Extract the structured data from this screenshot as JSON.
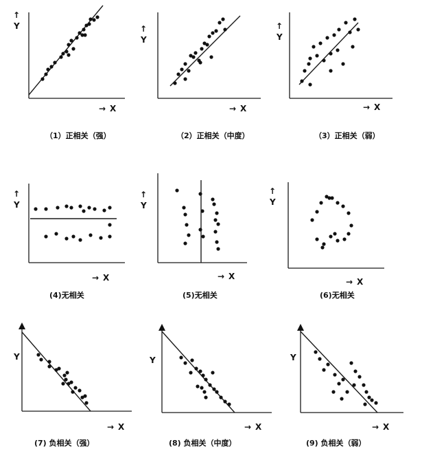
{
  "axis_labels": {
    "x": "X",
    "y": "Y",
    "arrow": "→",
    "up_arrow": "↑"
  },
  "panels": [
    {
      "label": "（1）正相关（强）",
      "kind": "positive",
      "strength": "strong"
    },
    {
      "label": "（2）正相关（中度）",
      "kind": "positive",
      "strength": "moderate"
    },
    {
      "label": "（3）正相关（弱）",
      "kind": "positive",
      "strength": "weak"
    },
    {
      "label": "(4)无相关",
      "kind": "none",
      "variant": "horizontal-line"
    },
    {
      "label": "(5)无相关",
      "kind": "none",
      "variant": "vertical-line"
    },
    {
      "label": "(6)无相关",
      "kind": "none",
      "variant": "ring"
    },
    {
      "label": "(7) 负相关（强）",
      "kind": "negative",
      "strength": "strong"
    },
    {
      "label": "(8) 负相关（中度）",
      "kind": "negative",
      "strength": "moderate"
    },
    {
      "label": "(9) 负相关（弱）",
      "kind": "negative",
      "strength": "weak"
    }
  ]
}
